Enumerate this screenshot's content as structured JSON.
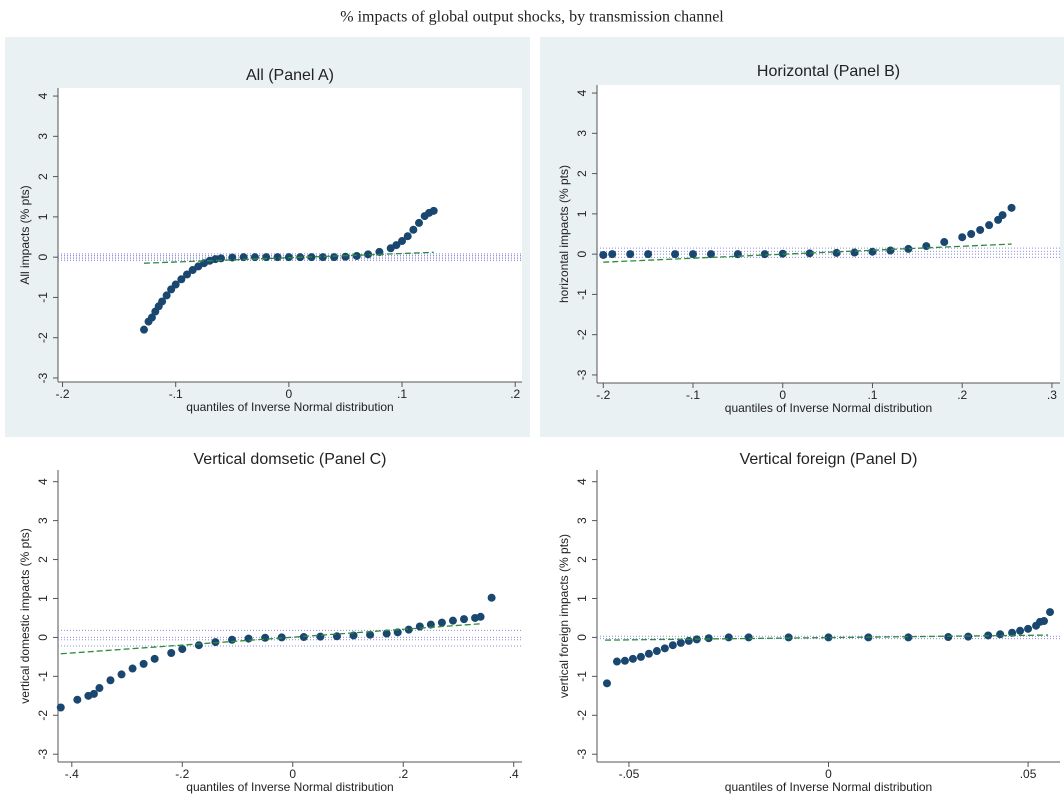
{
  "figure_title": "% impacts of global output shocks, by transmission channel",
  "chart_data": [
    {
      "type": "scatter",
      "title": "All (Panel A)",
      "x_label": "quantiles of Inverse Normal distribution",
      "y_label": "All impacts (% pts)",
      "xlim": [
        -0.204,
        0.206
      ],
      "ylim": [
        -3.1,
        4.2
      ],
      "xticks": [
        {
          "value": -0.2,
          "label": "-.2"
        },
        {
          "value": -0.1,
          "label": "-.1"
        },
        0,
        {
          "value": 0.1,
          "label": ".1"
        },
        {
          "value": 0.2,
          "label": ".2"
        }
      ],
      "yticks": [
        {
          "value": -3,
          "label": "-3"
        },
        {
          "value": -2,
          "label": "-2"
        },
        {
          "value": -1,
          "label": "-1"
        },
        0,
        1,
        2,
        3,
        4
      ],
      "color": "#1a476f",
      "x": [
        -0.128,
        -0.124,
        -0.121,
        -0.118,
        -0.115,
        -0.112,
        -0.108,
        -0.104,
        -0.1,
        -0.095,
        -0.09,
        -0.085,
        -0.08,
        -0.075,
        -0.07,
        -0.065,
        -0.06,
        -0.05,
        -0.04,
        -0.03,
        -0.02,
        -0.01,
        0,
        0.01,
        0.02,
        0.03,
        0.04,
        0.05,
        0.06,
        0.07,
        0.08,
        0.09,
        0.095,
        0.1,
        0.105,
        0.11,
        0.115,
        0.12,
        0.124,
        0.128
      ],
      "y": [
        -1.8,
        -1.6,
        -1.5,
        -1.35,
        -1.22,
        -1.1,
        -0.95,
        -0.8,
        -0.68,
        -0.55,
        -0.43,
        -0.32,
        -0.23,
        -0.15,
        -0.09,
        -0.05,
        -0.03,
        -0.01,
        0,
        0,
        0,
        0,
        0,
        0,
        0,
        0,
        0,
        0.01,
        0.03,
        0.07,
        0.13,
        0.22,
        0.3,
        0.4,
        0.52,
        0.68,
        0.85,
        1.02,
        1.1,
        1.15
      ],
      "fit_line": {
        "x": [
          -0.128,
          0.128
        ],
        "y": [
          -0.15,
          0.12
        ],
        "color": "#2e8b3a"
      },
      "hlines": [
        -0.08,
        -0.04,
        0,
        0.04,
        0.08
      ],
      "hline_color": "#8c8cd8"
    },
    {
      "type": "scatter",
      "title": "Horizontal (Panel B)",
      "x_label": "quantiles of Inverse Normal distribution",
      "y_label": "horizontal impacts (% pts)",
      "xlim": [
        -0.207,
        0.309
      ],
      "ylim": [
        -3.2,
        4.2
      ],
      "xticks": [
        {
          "value": -0.2,
          "label": "-.2"
        },
        {
          "value": -0.1,
          "label": "-.1"
        },
        0,
        {
          "value": 0.1,
          "label": ".1"
        },
        {
          "value": 0.2,
          "label": ".2"
        },
        {
          "value": 0.3,
          "label": ".3"
        }
      ],
      "yticks": [
        {
          "value": -3,
          "label": "-3"
        },
        {
          "value": -2,
          "label": "-2"
        },
        {
          "value": -1,
          "label": "-1"
        },
        0,
        1,
        2,
        3,
        4
      ],
      "color": "#1a476f",
      "x": [
        -0.2,
        -0.19,
        -0.17,
        -0.15,
        -0.12,
        -0.1,
        -0.08,
        -0.05,
        -0.02,
        0,
        0.03,
        0.06,
        0.08,
        0.1,
        0.12,
        0.14,
        0.16,
        0.18,
        0.2,
        0.21,
        0.22,
        0.23,
        0.24,
        0.245,
        0.255
      ],
      "y": [
        -0.02,
        0,
        0,
        0,
        0,
        0,
        0,
        0,
        0,
        0.01,
        0.02,
        0.03,
        0.04,
        0.06,
        0.09,
        0.13,
        0.2,
        0.3,
        0.42,
        0.5,
        0.6,
        0.72,
        0.85,
        0.97,
        1.15
      ],
      "fit_line": {
        "x": [
          -0.2,
          0.255
        ],
        "y": [
          -0.2,
          0.25
        ],
        "color": "#2e8b3a"
      },
      "hlines": [
        -0.08,
        0,
        0.07,
        0.15
      ],
      "hline_color": "#8c8cd8"
    },
    {
      "type": "scatter",
      "title": "Vertical domsetic (Panel C)",
      "x_label": "quantiles of Inverse Normal distribution",
      "y_label": "vertical domestic impacts (% pts)",
      "xlim": [
        -0.425,
        0.415
      ],
      "ylim": [
        -3.2,
        4.3
      ],
      "xticks": [
        {
          "value": -0.4,
          "label": "-.4"
        },
        {
          "value": -0.2,
          "label": "-.2"
        },
        0,
        {
          "value": 0.2,
          "label": ".2"
        },
        {
          "value": 0.4,
          "label": ".4"
        }
      ],
      "yticks": [
        {
          "value": -3,
          "label": "-3"
        },
        {
          "value": -2,
          "label": "-2"
        },
        {
          "value": -1,
          "label": "-1"
        },
        0,
        1,
        2,
        3,
        4
      ],
      "color": "#1a476f",
      "x": [
        -0.42,
        -0.39,
        -0.37,
        -0.36,
        -0.35,
        -0.33,
        -0.31,
        -0.29,
        -0.27,
        -0.25,
        -0.22,
        -0.2,
        -0.17,
        -0.14,
        -0.11,
        -0.08,
        -0.05,
        -0.02,
        0.02,
        0.05,
        0.08,
        0.11,
        0.14,
        0.17,
        0.19,
        0.21,
        0.23,
        0.25,
        0.27,
        0.29,
        0.31,
        0.33,
        0.34,
        0.36
      ],
      "y": [
        -1.8,
        -1.6,
        -1.5,
        -1.45,
        -1.3,
        -1.1,
        -0.95,
        -0.8,
        -0.68,
        -0.55,
        -0.4,
        -0.3,
        -0.2,
        -0.12,
        -0.06,
        -0.03,
        -0.01,
        0,
        0.01,
        0.02,
        0.03,
        0.05,
        0.07,
        0.1,
        0.13,
        0.2,
        0.28,
        0.33,
        0.38,
        0.43,
        0.47,
        0.5,
        0.53,
        1.02
      ],
      "fit_line": {
        "x": [
          -0.42,
          0.34
        ],
        "y": [
          -0.42,
          0.35
        ],
        "color": "#2e8b3a"
      },
      "hlines": [
        -0.22,
        -0.06,
        0,
        0.18
      ],
      "hline_color": "#8c8cd8"
    },
    {
      "type": "scatter",
      "title": "Vertical foreign (Panel D)",
      "x_label": "quantiles of Inverse Normal distribution",
      "y_label": "vertical foreign impacts (% pts)",
      "xlim": [
        -0.058,
        0.058
      ],
      "ylim": [
        -3.2,
        4.3
      ],
      "xticks": [
        {
          "value": -0.05,
          "label": "-.05"
        },
        0,
        {
          "value": 0.05,
          "label": ".05"
        }
      ],
      "yticks": [
        {
          "value": -3,
          "label": "-3"
        },
        {
          "value": -2,
          "label": "-2"
        },
        {
          "value": -1,
          "label": "-1"
        },
        0,
        1,
        2,
        3,
        4
      ],
      "color": "#1a476f",
      "x": [
        -0.0555,
        -0.053,
        -0.051,
        -0.049,
        -0.047,
        -0.045,
        -0.043,
        -0.041,
        -0.039,
        -0.037,
        -0.035,
        -0.033,
        -0.03,
        -0.025,
        -0.02,
        -0.01,
        0,
        0.01,
        0.02,
        0.03,
        0.035,
        0.04,
        0.043,
        0.046,
        0.048,
        0.05,
        0.052,
        0.053,
        0.054,
        0.0555
      ],
      "y": [
        -1.18,
        -0.62,
        -0.6,
        -0.55,
        -0.5,
        -0.42,
        -0.35,
        -0.28,
        -0.2,
        -0.14,
        -0.09,
        -0.05,
        -0.02,
        0,
        0,
        0,
        0,
        0,
        0,
        0.01,
        0.02,
        0.05,
        0.08,
        0.12,
        0.17,
        0.22,
        0.3,
        0.4,
        0.42,
        0.65
      ],
      "fit_line": {
        "x": [
          -0.056,
          0.055
        ],
        "y": [
          -0.07,
          0.06
        ],
        "color": "#2e8b3a"
      },
      "hlines": [
        -0.03,
        0.03
      ],
      "hline_color": "#8c8cd8"
    }
  ]
}
